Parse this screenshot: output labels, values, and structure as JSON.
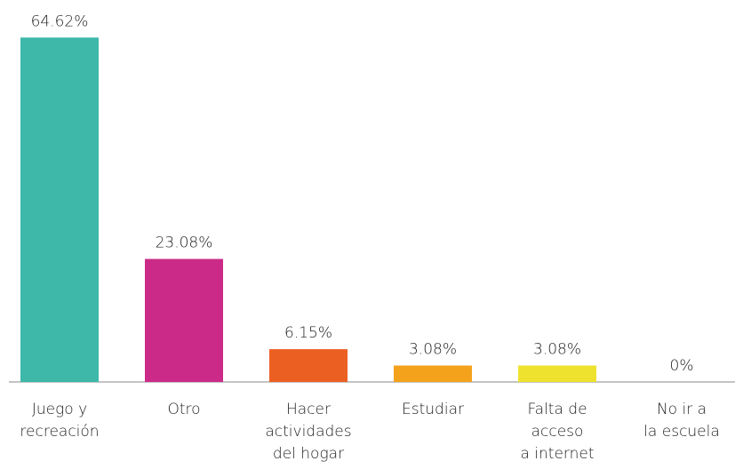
{
  "chart_data": {
    "type": "bar",
    "categories": [
      [
        "Juego y",
        "recreación"
      ],
      [
        "Otro"
      ],
      [
        "Hacer",
        "actividades",
        "del hogar"
      ],
      [
        "Estudiar"
      ],
      [
        "Falta de",
        "acceso",
        "a internet"
      ],
      [
        "No ir a",
        "la escuela"
      ]
    ],
    "values": [
      64.62,
      23.08,
      6.15,
      3.08,
      3.08,
      0
    ],
    "value_labels": [
      "64.62%",
      "23.08%",
      "6.15%",
      "3.08%",
      "3.08%",
      "0%"
    ],
    "colors": [
      "#3db8a9",
      "#cc2a89",
      "#ec5f23",
      "#f4a21c",
      "#efe22e",
      "#999999"
    ],
    "ylim": [
      0,
      70
    ]
  }
}
